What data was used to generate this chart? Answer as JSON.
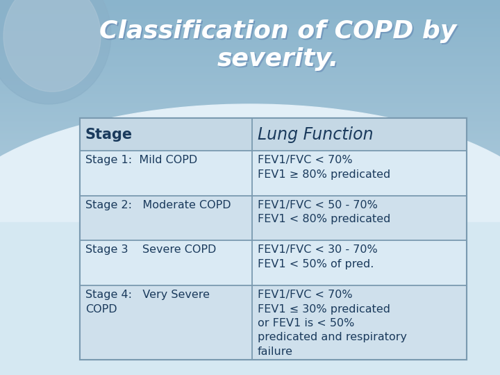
{
  "title": "Classification of COPD by\nseverity.",
  "title_color": "#FFFFFF",
  "title_fontsize": 26,
  "header_row": [
    "Stage",
    "Lung Function"
  ],
  "header_fontsize": 15,
  "cell_fontsize": 11.5,
  "rows": [
    {
      "stage": "Stage 1:  Mild COPD",
      "lung_function": "FEV1/FVC < 70%\nFEV1 ≥ 80% predicated"
    },
    {
      "stage": "Stage 2:   Moderate COPD",
      "lung_function": "FEV1/FVC < 50 - 70%\nFEV1 < 80% predicated"
    },
    {
      "stage": "Stage 3    Severe COPD",
      "lung_function": "FEV1/FVC < 30 - 70%\nFEV1 < 50% of pred."
    },
    {
      "stage": "Stage 4:   Very Severe\nCOPD",
      "lung_function": "FEV1/FVC < 70%\nFEV1 ≤ 30% predicated\nor FEV1 is < 50%\npredicated and respiratory\nfailure"
    }
  ],
  "text_color": "#1a3a5c",
  "table_border_color": "#7a9ab0",
  "col_split": 0.445,
  "bg_top": "#8ab4cc",
  "bg_mid": "#b8d4e4",
  "bg_bottom": "#c8dce8",
  "table_header_bg": "#c5d8e5",
  "table_row_bg1": "#daeaf4",
  "table_row_bg2": "#cfe0ec",
  "table_row_bg4": "#daeaf4",
  "white_sweep_color": "#e8f2f8",
  "figsize": [
    7.2,
    5.4
  ],
  "dpi": 100
}
